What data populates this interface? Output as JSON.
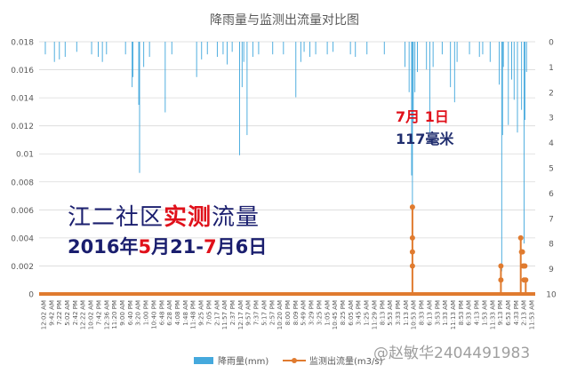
{
  "chart_data": {
    "type": "bar+line",
    "title": "降雨量与监测出流量对比图",
    "left_axis": {
      "min": 0,
      "max": 0.018,
      "ticks": [
        "0",
        "0.002",
        "0.004",
        "0.006",
        "0.008",
        "0.01",
        "0.012",
        "0.014",
        "0.016",
        "0.018"
      ]
    },
    "right_axis": {
      "min": 0,
      "max": 10,
      "reversed": true,
      "ticks": [
        "0",
        "1",
        "2",
        "3",
        "4",
        "5",
        "6",
        "7",
        "8",
        "9",
        "10"
      ]
    },
    "x_tick_labels": [
      "12:02 AM",
      "9:42 AM",
      "7:22 PM",
      "5:02 AM",
      "2:42 PM",
      "12:22 AM",
      "10:02 AM",
      "7:42 PM",
      "12:36 AM",
      "11:20 PM",
      "9:00 AM",
      "6:40 PM",
      "3:20 AM",
      "1:00 PM",
      "10:40 PM",
      "6:48 PM",
      "6:28 AM",
      "4:08 PM",
      "1:48 AM",
      "11:48 PM",
      "9:25 AM",
      "7:05 PM",
      "2:17 AM",
      "11:57 AM",
      "2:37 PM",
      "12:17 AM",
      "9:57 AM",
      "7:37 PM",
      "5:17 AM",
      "2:57 PM",
      "10:20 AM",
      "8:00 PM",
      "8:09 PM",
      "5:49 AM",
      "3:29 PM",
      "3:25 PM",
      "1:05 AM",
      "10:45 AM",
      "8:25 PM",
      "6:05 AM",
      "3:45 PM",
      "1:25 AM",
      "11:29 AM",
      "8:13 PM",
      "5:53 AM",
      "3:33 PM",
      "1:13 AM",
      "10:53 AM",
      "8:33 PM",
      "6:13 AM",
      "3:53 PM",
      "1:33 AM",
      "11:13 AM",
      "8:53 PM",
      "6:33 AM",
      "4:13 PM",
      "1:53 AM",
      "11:33 AM",
      "9:13 PM",
      "6:53 AM",
      "4:33 PM",
      "2:13 AM",
      "11:53 AM"
    ],
    "rainfall_series": {
      "name": "降雨量(mm)",
      "color": "#45a9dd",
      "n": 600,
      "note": "mm per interval, plotted downward from the top on the reversed right axis",
      "spikes": [
        {
          "i": 7,
          "v": 0.5
        },
        {
          "i": 18,
          "v": 0.8
        },
        {
          "i": 24,
          "v": 0.7
        },
        {
          "i": 31,
          "v": 0.6
        },
        {
          "i": 45,
          "v": 0.4
        },
        {
          "i": 63,
          "v": 0.5
        },
        {
          "i": 71,
          "v": 0.6
        },
        {
          "i": 76,
          "v": 0.8
        },
        {
          "i": 81,
          "v": 0.5
        },
        {
          "i": 104,
          "v": 0.5
        },
        {
          "i": 112,
          "v": 1.8
        },
        {
          "i": 113,
          "v": 1.4
        },
        {
          "i": 120,
          "v": 2.5
        },
        {
          "i": 121,
          "v": 5.2
        },
        {
          "i": 126,
          "v": 1.0
        },
        {
          "i": 133,
          "v": 0.6
        },
        {
          "i": 152,
          "v": 2.8
        },
        {
          "i": 160,
          "v": 0.5
        },
        {
          "i": 190,
          "v": 1.4
        },
        {
          "i": 196,
          "v": 0.7
        },
        {
          "i": 203,
          "v": 0.5
        },
        {
          "i": 215,
          "v": 0.6
        },
        {
          "i": 222,
          "v": 0.5
        },
        {
          "i": 227,
          "v": 0.9
        },
        {
          "i": 233,
          "v": 0.4
        },
        {
          "i": 242,
          "v": 4.5
        },
        {
          "i": 245,
          "v": 1.8
        },
        {
          "i": 247,
          "v": 0.8
        },
        {
          "i": 251,
          "v": 3.7
        },
        {
          "i": 258,
          "v": 0.6
        },
        {
          "i": 265,
          "v": 0.5
        },
        {
          "i": 282,
          "v": 0.5
        },
        {
          "i": 295,
          "v": 0.5
        },
        {
          "i": 310,
          "v": 2.2
        },
        {
          "i": 316,
          "v": 0.8
        },
        {
          "i": 320,
          "v": 0.4
        },
        {
          "i": 327,
          "v": 0.6
        },
        {
          "i": 334,
          "v": 0.5
        },
        {
          "i": 348,
          "v": 0.5
        },
        {
          "i": 355,
          "v": 0.4
        },
        {
          "i": 376,
          "v": 0.5
        },
        {
          "i": 382,
          "v": 0.6
        },
        {
          "i": 396,
          "v": 0.5
        },
        {
          "i": 417,
          "v": 0.5
        },
        {
          "i": 442,
          "v": 1.0
        },
        {
          "i": 447,
          "v": 2.0
        },
        {
          "i": 450,
          "v": 5.3
        },
        {
          "i": 451,
          "v": 9.0
        },
        {
          "i": 452,
          "v": 3.2
        },
        {
          "i": 454,
          "v": 2.0
        },
        {
          "i": 457,
          "v": 1.2
        },
        {
          "i": 468,
          "v": 1.1
        },
        {
          "i": 472,
          "v": 3.6
        },
        {
          "i": 476,
          "v": 1.0
        },
        {
          "i": 487,
          "v": 0.5
        },
        {
          "i": 497,
          "v": 1.8
        },
        {
          "i": 502,
          "v": 2.4
        },
        {
          "i": 505,
          "v": 0.8
        },
        {
          "i": 520,
          "v": 0.5
        },
        {
          "i": 532,
          "v": 0.6
        },
        {
          "i": 536,
          "v": 0.5
        },
        {
          "i": 545,
          "v": 0.8
        },
        {
          "i": 556,
          "v": 1.7
        },
        {
          "i": 559,
          "v": 9.1
        },
        {
          "i": 560,
          "v": 3.7
        },
        {
          "i": 561,
          "v": 1.0
        },
        {
          "i": 567,
          "v": 3.3
        },
        {
          "i": 571,
          "v": 1.5
        },
        {
          "i": 574,
          "v": 2.3
        },
        {
          "i": 578,
          "v": 3.6
        },
        {
          "i": 583,
          "v": 2.7
        },
        {
          "i": 586,
          "v": 8.0
        },
        {
          "i": 587,
          "v": 3.1
        },
        {
          "i": 589,
          "v": 1.2
        }
      ]
    },
    "outflow_series": {
      "name": "监测出流量(m3/s)",
      "color": "#e07b2f",
      "n": 600,
      "baseline": 0,
      "points": [
        {
          "i": 451,
          "v": 0.0062
        },
        {
          "i": 451,
          "v": 0.004
        },
        {
          "i": 451,
          "v": 0.003
        },
        {
          "i": 451,
          "v": 0.002
        },
        {
          "i": 558,
          "v": 0.002
        },
        {
          "i": 558,
          "v": 0.001
        },
        {
          "i": 582,
          "v": 0.004
        },
        {
          "i": 583,
          "v": 0.003
        },
        {
          "i": 584,
          "v": 0.003
        },
        {
          "i": 585,
          "v": 0.002
        },
        {
          "i": 586,
          "v": 0.001
        },
        {
          "i": 587,
          "v": 0.002
        },
        {
          "i": 588,
          "v": 0.001
        }
      ]
    },
    "legend": [
      "降雨量(mm)",
      "监测出流量(m3/s)"
    ],
    "legend_position": "bottom-center",
    "annotations": {
      "peak_month": "7月",
      "peak_day": "1日",
      "peak_amount": "117毫米",
      "banner_title_a": "江二社区",
      "banner_title_b": "实测",
      "banner_title_c": "流量",
      "banner_year": "2016年",
      "banner_start_month": "5",
      "banner_mid": "月21-",
      "banner_end_month": "7",
      "banner_end": "月6日"
    }
  },
  "watermark": "@赵敏华2404491983"
}
